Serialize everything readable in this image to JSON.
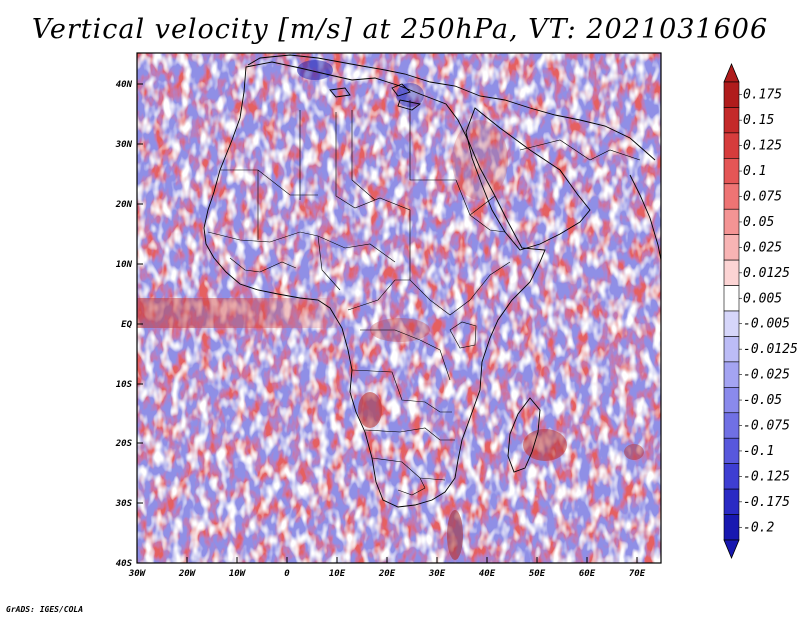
{
  "title": "Vertical velocity [m/s] at 250hPa, VT: 2021031606",
  "credit": "GrADS: IGES/COLA",
  "lat_labels": [
    "40N",
    "30N",
    "20N",
    "10N",
    "EQ",
    "10S",
    "20S",
    "30S",
    "40S"
  ],
  "lon_labels": [
    "30W",
    "20W",
    "10W",
    "0",
    "10E",
    "20E",
    "30E",
    "40E",
    "50E",
    "60E",
    "70E"
  ],
  "colorbar": {
    "labels": [
      "0.175",
      "0.15",
      "0.125",
      "0.1",
      "0.075",
      "0.05",
      "0.025",
      "0.0125",
      "0.005",
      "-0.005",
      "-0.0125",
      "-0.025",
      "-0.05",
      "-0.075",
      "-0.1",
      "-0.125",
      "-0.175",
      "-0.2"
    ],
    "colors": [
      "#b01c1c",
      "#c42a2a",
      "#d63c3c",
      "#e45656",
      "#ee7474",
      "#f49494",
      "#f8b4b4",
      "#fcd4d4",
      "#ffffff",
      "#d6d6fa",
      "#bcbcf6",
      "#a4a4f2",
      "#8a8aec",
      "#7070e4",
      "#5858dc",
      "#3e3ed2",
      "#2a2ac4",
      "#1818b0"
    ]
  }
}
